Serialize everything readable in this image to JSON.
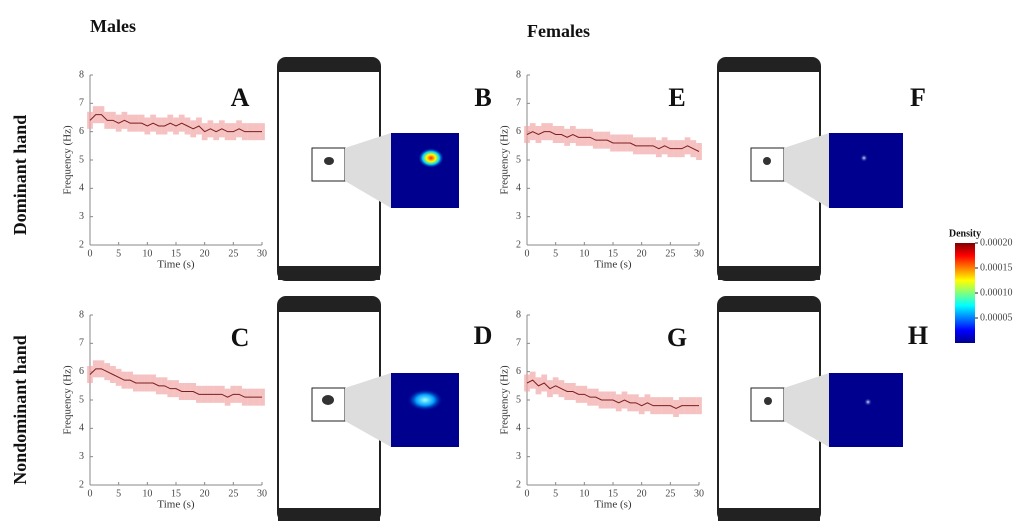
{
  "column_titles": [
    "Males",
    "Females"
  ],
  "row_titles": [
    "Dominant hand",
    "Nondominant hand"
  ],
  "panel_labels": [
    "B",
    "F",
    "D",
    "H"
  ],
  "colorbar": {
    "title": "Density",
    "lim": [
      0,
      0.0002
    ],
    "ticks": [
      {
        "value": 5e-05,
        "label": "0.00005"
      },
      {
        "value": 0.0001,
        "label": "0.00010"
      },
      {
        "value": 0.00015,
        "label": "0.00015"
      },
      {
        "value": 0.0002,
        "label": "0.00020"
      }
    ]
  },
  "chart_data": [
    {
      "type": "line",
      "panel_label": "A",
      "xlabel": "Time (s)",
      "ylabel": "Frequency (Hz)",
      "x": [
        0,
        1,
        2,
        3,
        4,
        5,
        6,
        7,
        8,
        9,
        10,
        11,
        12,
        13,
        14,
        15,
        16,
        17,
        18,
        19,
        20,
        21,
        22,
        23,
        24,
        25,
        26,
        27,
        28,
        29,
        30
      ],
      "series": [
        {
          "color": "#7a1f1f",
          "band_color": "#f2a7a7",
          "error": 0.3,
          "values": [
            6.4,
            6.6,
            6.6,
            6.4,
            6.4,
            6.3,
            6.4,
            6.3,
            6.3,
            6.3,
            6.2,
            6.3,
            6.2,
            6.2,
            6.3,
            6.2,
            6.3,
            6.2,
            6.1,
            6.2,
            6.0,
            6.1,
            6.0,
            6.1,
            6.0,
            6.0,
            6.1,
            6.0,
            6.0,
            6.0,
            6.0
          ]
        }
      ],
      "xlim": [
        0,
        30
      ],
      "ylim": [
        2,
        8
      ],
      "xticks": [
        0,
        5,
        10,
        15,
        20,
        25,
        30
      ],
      "yticks": [
        2,
        3,
        4,
        5,
        6,
        7,
        8
      ]
    },
    {
      "type": "line",
      "panel_label": "E",
      "xlabel": "Time (s)",
      "ylabel": "Frequency (Hz)",
      "x": [
        0,
        1,
        2,
        3,
        4,
        5,
        6,
        7,
        8,
        9,
        10,
        11,
        12,
        13,
        14,
        15,
        16,
        17,
        18,
        19,
        20,
        21,
        22,
        23,
        24,
        25,
        26,
        27,
        28,
        29,
        30
      ],
      "series": [
        {
          "color": "#7a1f1f",
          "band_color": "#f2a7a7",
          "error": 0.3,
          "values": [
            5.9,
            6.0,
            5.9,
            6.0,
            6.0,
            5.9,
            5.9,
            5.8,
            5.9,
            5.8,
            5.8,
            5.8,
            5.7,
            5.7,
            5.7,
            5.6,
            5.6,
            5.6,
            5.6,
            5.5,
            5.5,
            5.5,
            5.5,
            5.4,
            5.5,
            5.4,
            5.4,
            5.4,
            5.5,
            5.4,
            5.3
          ]
        }
      ],
      "xlim": [
        0,
        30
      ],
      "ylim": [
        2,
        8
      ],
      "xticks": [
        0,
        5,
        10,
        15,
        20,
        25,
        30
      ],
      "yticks": [
        2,
        3,
        4,
        5,
        6,
        7,
        8
      ]
    },
    {
      "type": "line",
      "panel_label": "C",
      "xlabel": "Time (s)",
      "ylabel": "Frequency (Hz)",
      "x": [
        0,
        1,
        2,
        3,
        4,
        5,
        6,
        7,
        8,
        9,
        10,
        11,
        12,
        13,
        14,
        15,
        16,
        17,
        18,
        19,
        20,
        21,
        22,
        23,
        24,
        25,
        26,
        27,
        28,
        29,
        30
      ],
      "series": [
        {
          "color": "#7a1f1f",
          "band_color": "#f2a7a7",
          "error": 0.3,
          "values": [
            5.9,
            6.1,
            6.1,
            6.0,
            5.9,
            5.8,
            5.7,
            5.7,
            5.6,
            5.6,
            5.6,
            5.6,
            5.5,
            5.5,
            5.4,
            5.4,
            5.3,
            5.3,
            5.3,
            5.2,
            5.2,
            5.2,
            5.2,
            5.2,
            5.1,
            5.2,
            5.2,
            5.1,
            5.1,
            5.1,
            5.1
          ]
        }
      ],
      "xlim": [
        0,
        30
      ],
      "ylim": [
        2,
        8
      ],
      "xticks": [
        0,
        5,
        10,
        15,
        20,
        25,
        30
      ],
      "yticks": [
        2,
        3,
        4,
        5,
        6,
        7,
        8
      ]
    },
    {
      "type": "line",
      "panel_label": "G",
      "xlabel": "Time (s)",
      "ylabel": "Frequency (Hz)",
      "x": [
        0,
        1,
        2,
        3,
        4,
        5,
        6,
        7,
        8,
        9,
        10,
        11,
        12,
        13,
        14,
        15,
        16,
        17,
        18,
        19,
        20,
        21,
        22,
        23,
        24,
        25,
        26,
        27,
        28,
        29,
        30
      ],
      "series": [
        {
          "color": "#7a1f1f",
          "band_color": "#f2a7a7",
          "error": 0.3,
          "values": [
            5.6,
            5.7,
            5.5,
            5.6,
            5.4,
            5.5,
            5.4,
            5.3,
            5.3,
            5.2,
            5.2,
            5.1,
            5.1,
            5.0,
            5.0,
            5.0,
            4.9,
            5.0,
            4.9,
            4.9,
            4.8,
            4.9,
            4.8,
            4.8,
            4.8,
            4.8,
            4.7,
            4.8,
            4.8,
            4.8,
            4.8
          ]
        }
      ],
      "xlim": [
        0,
        30
      ],
      "ylim": [
        2,
        8
      ],
      "xticks": [
        0,
        5,
        10,
        15,
        20,
        25,
        30
      ],
      "yticks": [
        2,
        3,
        4,
        5,
        6,
        7,
        8
      ]
    }
  ]
}
